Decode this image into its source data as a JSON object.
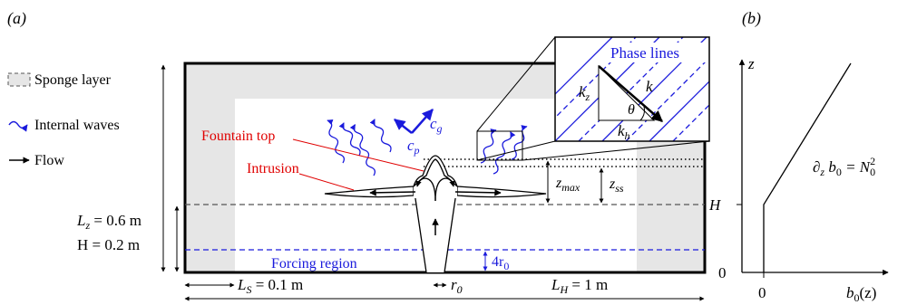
{
  "panel_a": {
    "label": "(a)",
    "legend": {
      "sponge": "Sponge layer",
      "waves": "Internal waves",
      "flow": "Flow"
    },
    "dims": {
      "Lz_sym": "L",
      "Lz_sub": "z",
      "Lz_val": " = 0.6 m",
      "H_val": "H = 0.2 m",
      "LS_sym": "L",
      "LS_sub": "S",
      "LS_val": " = 0.1 m",
      "LH_sym": "L",
      "LH_sub": "H",
      "LH_val": " = 1 m",
      "r0_sym": "r",
      "r0_sub": "0"
    },
    "annotations": {
      "fountain_top": "Fountain top",
      "intrusion": "Intrusion",
      "forcing": "Forcing region",
      "four_r0_a": "4r",
      "four_r0_b": "0",
      "zmax_a": "z",
      "zmax_b": "max",
      "zss_a": "z",
      "zss_b": "ss",
      "cg_a": "c",
      "cg_b": "g",
      "cp_a": "c",
      "cp_b": "p"
    },
    "inset": {
      "phase_lines": "Phase lines",
      "k": "k",
      "kz_a": "k",
      "kz_b": "z",
      "kh_a": "k",
      "kh_b": "h",
      "theta": "θ"
    },
    "colors": {
      "sponge": "#e6e6e6",
      "blue": "#1a1adc",
      "red": "#e00000",
      "black": "#000000"
    }
  },
  "panel_b": {
    "label": "(b)",
    "z_axis": "z",
    "H_tick": "H",
    "zero_y": "0",
    "zero_x": "0",
    "x_a": "b",
    "x_b": "0",
    "x_c": "(z)",
    "eq_a": "∂",
    "eq_b": "z",
    "eq_c": " b",
    "eq_d": "0",
    "eq_e": " = N",
    "eq_f": "0",
    "eq_g": "2"
  }
}
